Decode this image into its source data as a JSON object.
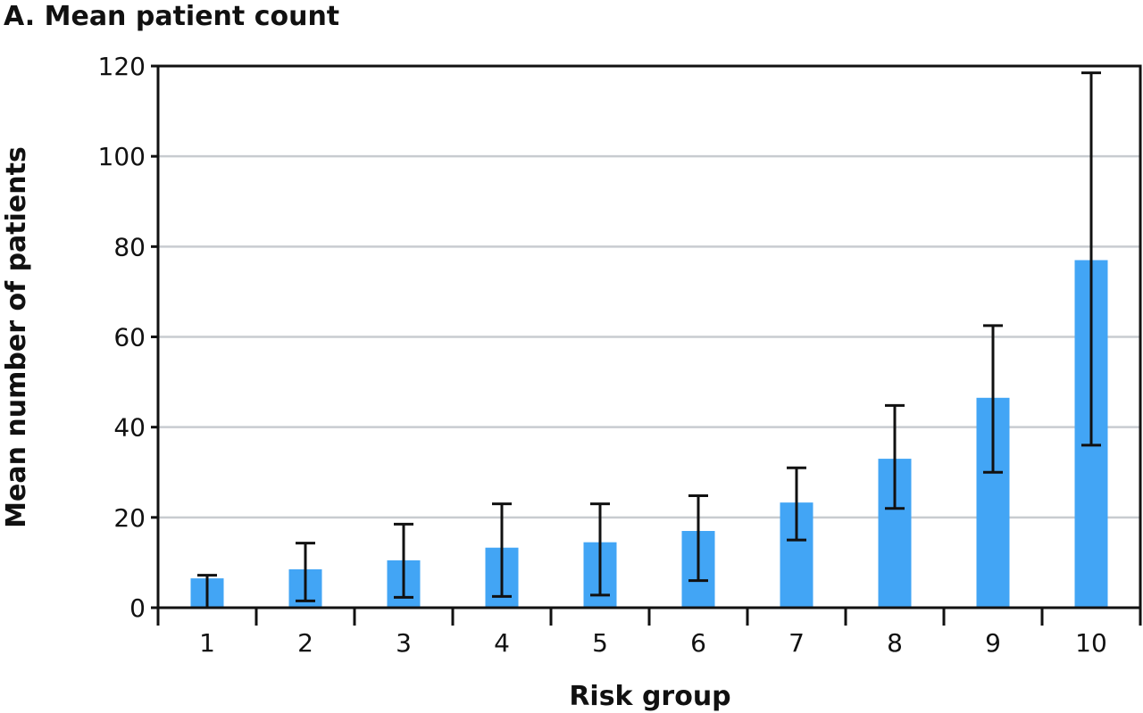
{
  "chart_data": {
    "type": "bar",
    "title": "A. Mean patient count",
    "xlabel": "Risk group",
    "ylabel": "Mean number of patients",
    "categories": [
      "1",
      "2",
      "3",
      "4",
      "5",
      "6",
      "7",
      "8",
      "9",
      "10"
    ],
    "values": [
      6.5,
      8.5,
      10.5,
      13.3,
      14.5,
      17.0,
      23.3,
      33.0,
      46.5,
      77.0
    ],
    "error_low": [
      0.0,
      1.5,
      2.3,
      2.5,
      2.8,
      6.0,
      15.0,
      22.0,
      30.0,
      36.0
    ],
    "error_high": [
      7.2,
      14.3,
      18.5,
      23.0,
      23.0,
      24.8,
      31.0,
      44.8,
      62.5,
      118.5
    ],
    "ylim": [
      0,
      120
    ],
    "yticks": [
      0,
      20,
      40,
      60,
      80,
      100,
      120
    ],
    "grid": true,
    "bar_color": "#42a5f5"
  }
}
